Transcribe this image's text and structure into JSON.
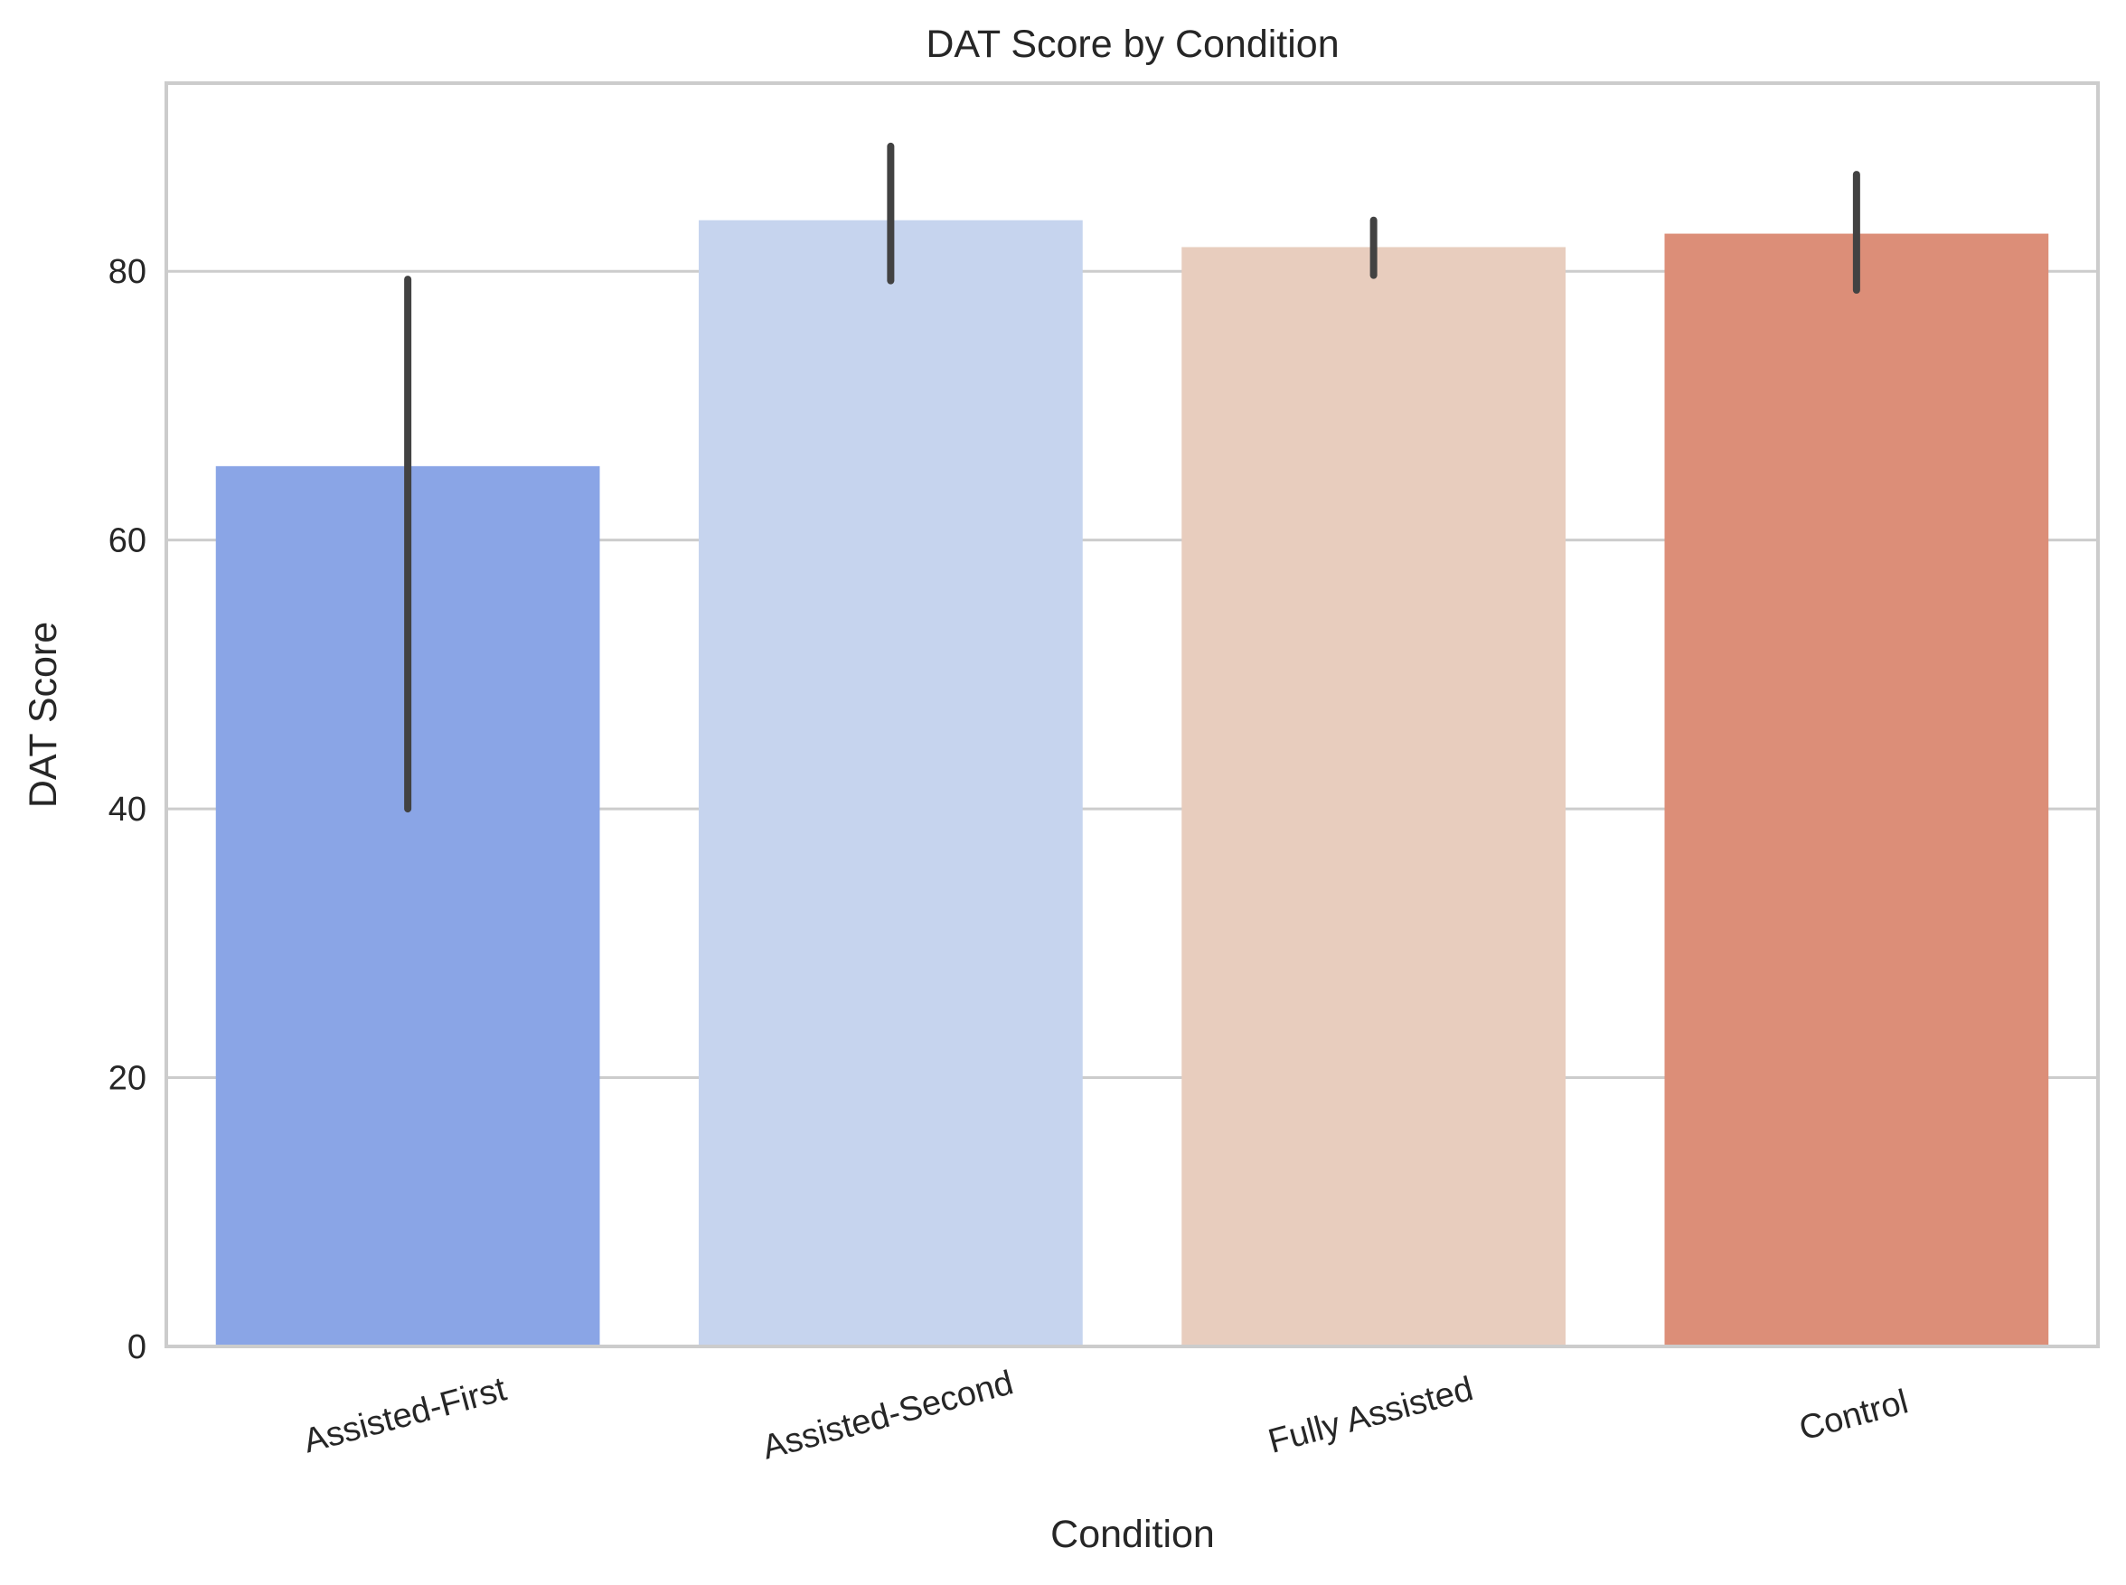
{
  "chart_data": {
    "type": "bar",
    "title": "DAT Score by Condition",
    "xlabel": "Condition",
    "ylabel": "DAT Score",
    "categories": [
      "Assisted-First",
      "Assisted-Second",
      "Fully Assisted",
      "Control"
    ],
    "values": [
      65.5,
      83.8,
      81.8,
      82.8
    ],
    "error_low": [
      40.0,
      79.3,
      79.7,
      78.6
    ],
    "error_high": [
      79.4,
      89.3,
      83.8,
      87.2
    ],
    "colors": [
      "#8aa5e6",
      "#c6d4ee",
      "#e8cdbe",
      "#dc8e78"
    ],
    "error_color": "#424242",
    "ylim": [
      0,
      94
    ],
    "yticks": [
      0,
      20,
      40,
      60,
      80
    ],
    "grid": "y-only",
    "legend": "none"
  }
}
